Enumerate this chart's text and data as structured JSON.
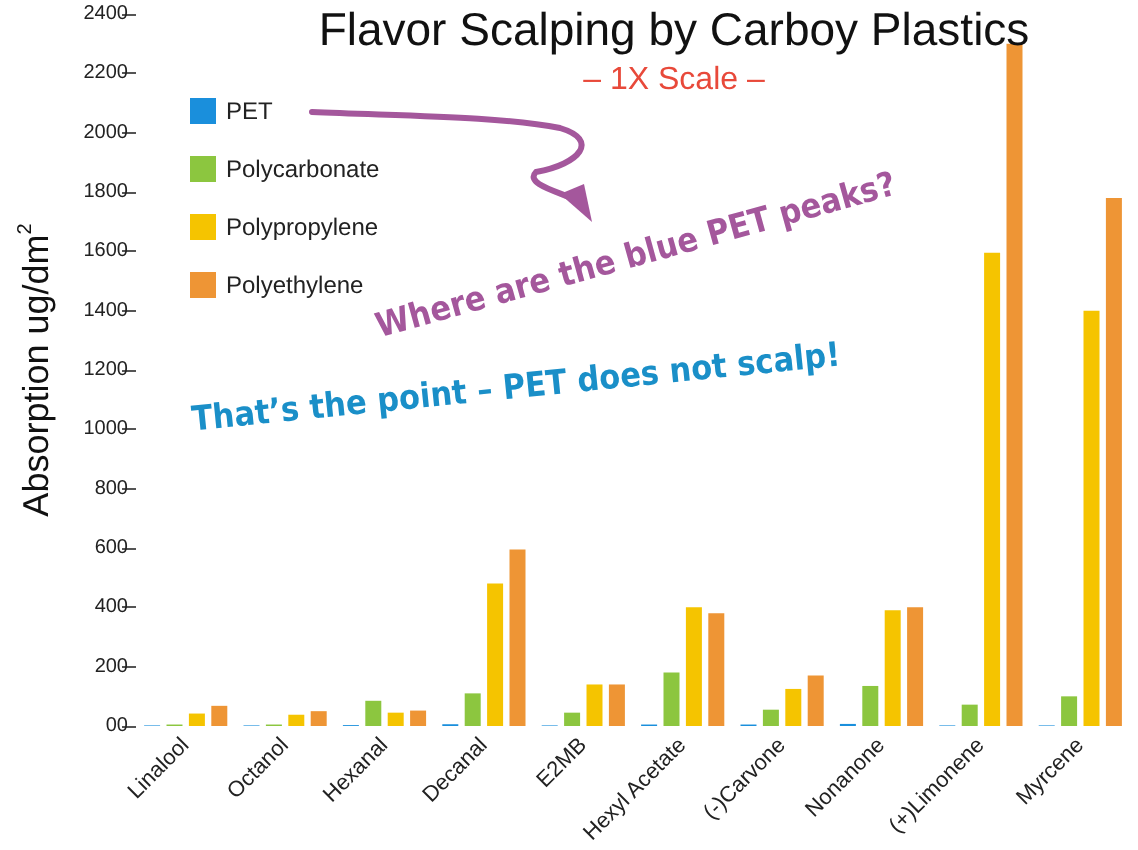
{
  "chart_data": {
    "type": "bar",
    "title": "Flavor Scalping by Carboy Plastics",
    "subtitle": "– 1X Scale –",
    "ylabel": "Absorption ug/dm$^{2}$",
    "annotations": [
      "Where are the blue PET peaks?",
      "That’s the point – PET does not scalp!"
    ],
    "categories": [
      "Linalool",
      "Octanol",
      "Hexanal",
      "Decanal",
      "E2MB",
      "Hexyl Acetate",
      "(-)Carvone",
      "Nonanone",
      "(+)Limonene",
      "Myrcene"
    ],
    "series": [
      {
        "name": "PET",
        "color": "#1a8fdc",
        "values": [
          2,
          2,
          3,
          6,
          2,
          5,
          5,
          7,
          2,
          2
        ]
      },
      {
        "name": "Polycarbonate",
        "color": "#8cc63f",
        "values": [
          5,
          5,
          85,
          110,
          45,
          180,
          55,
          135,
          72,
          100
        ]
      },
      {
        "name": "Polypropylene",
        "color": "#f5c400",
        "values": [
          42,
          38,
          45,
          480,
          140,
          400,
          125,
          390,
          1595,
          1400
        ]
      },
      {
        "name": "Polyethylene",
        "color": "#ee9535",
        "values": [
          68,
          50,
          52,
          595,
          140,
          380,
          170,
          400,
          2300,
          1780
        ]
      }
    ],
    "ylim": [
      0,
      2400
    ],
    "yticks": [
      {
        "value": 0,
        "label": "00"
      },
      200,
      400,
      600,
      800,
      1000,
      1200,
      1400,
      1600,
      1800,
      2000,
      2200,
      2400
    ],
    "legend": "top left",
    "grid": false
  }
}
